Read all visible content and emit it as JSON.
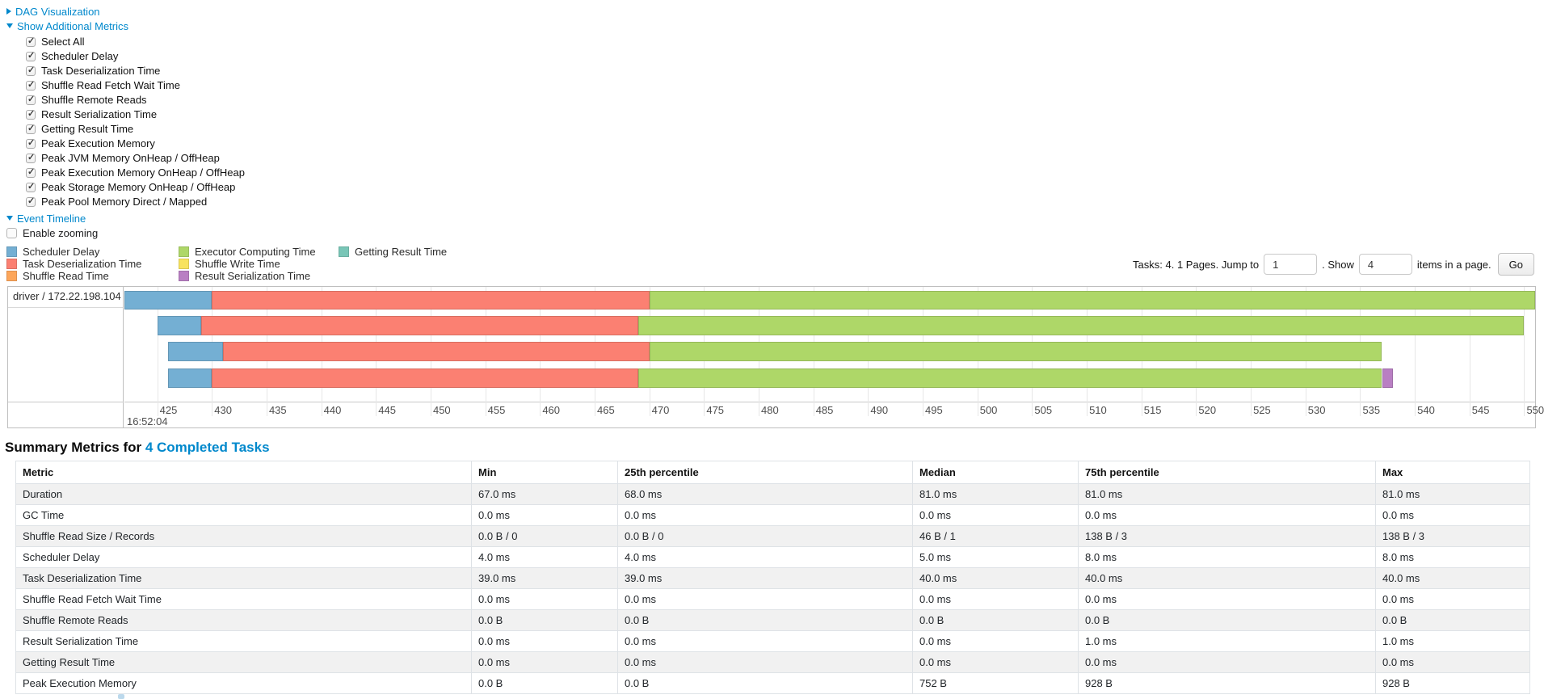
{
  "colors": {
    "link": "#0088cc"
  },
  "sections": {
    "dag": {
      "label": "DAG Visualization"
    },
    "metrics": {
      "label": "Show Additional Metrics"
    },
    "event_timeline": {
      "label": "Event Timeline"
    },
    "enable_zooming_label": "Enable zooming"
  },
  "metric_checkboxes": [
    "Select All",
    "Scheduler Delay",
    "Task Deserialization Time",
    "Shuffle Read Fetch Wait Time",
    "Shuffle Remote Reads",
    "Result Serialization Time",
    "Getting Result Time",
    "Peak Execution Memory",
    "Peak JVM Memory OnHeap / OffHeap",
    "Peak Execution Memory OnHeap / OffHeap",
    "Peak Storage Memory OnHeap / OffHeap",
    "Peak Pool Memory Direct / Mapped"
  ],
  "legend": {
    "columns": [
      {
        "items": [
          {
            "key": "scheduler_delay",
            "label": "Scheduler Delay"
          },
          {
            "key": "task_deserialization",
            "label": "Task Deserialization Time"
          },
          {
            "key": "shuffle_read",
            "label": "Shuffle Read Time"
          }
        ]
      },
      {
        "items": [
          {
            "key": "executor_computing",
            "label": "Executor Computing Time"
          },
          {
            "key": "shuffle_write",
            "label": "Shuffle Write Time"
          },
          {
            "key": "result_serialization",
            "label": "Result Serialization Time"
          }
        ]
      },
      {
        "items": [
          {
            "key": "getting_result",
            "label": "Getting Result Time"
          }
        ]
      }
    ]
  },
  "pagination": {
    "tasks_text": "Tasks: 4. 1 Pages. Jump to",
    "jump_value": "1",
    "show_text": ". Show",
    "show_value": "4",
    "items_text": "items in a page.",
    "go_label": "Go"
  },
  "chart_data": {
    "type": "timeline",
    "group_label": "driver / 172.22.198.104",
    "window": [
      422,
      551
    ],
    "ticks": [
      425,
      430,
      435,
      440,
      445,
      450,
      455,
      460,
      465,
      470,
      475,
      480,
      485,
      490,
      495,
      500,
      505,
      510,
      515,
      520,
      525,
      530,
      535,
      540,
      545,
      550
    ],
    "major_tick_label": "16:52:04",
    "colors": {
      "scheduler_delay": "#74AFD3",
      "task_deserialization": "#FB8072",
      "shuffle_read": "#FDA65A",
      "executor_computing": "#AED768",
      "shuffle_write": "#F8E35F",
      "result_serialization": "#B97FC3",
      "getting_result": "#79C6B7"
    },
    "tasks": [
      {
        "segments": [
          [
            "scheduler_delay",
            422,
            430
          ],
          [
            "task_deserialization",
            430,
            470
          ],
          [
            "executor_computing",
            470,
            551
          ]
        ]
      },
      {
        "segments": [
          [
            "scheduler_delay",
            425,
            429
          ],
          [
            "task_deserialization",
            429,
            469
          ],
          [
            "executor_computing",
            469,
            550
          ]
        ]
      },
      {
        "segments": [
          [
            "scheduler_delay",
            426,
            431
          ],
          [
            "task_deserialization",
            431,
            470
          ],
          [
            "executor_computing",
            470,
            537
          ]
        ]
      },
      {
        "segments": [
          [
            "scheduler_delay",
            426,
            430
          ],
          [
            "task_deserialization",
            430,
            469
          ],
          [
            "executor_computing",
            469,
            537
          ],
          [
            "result_serialization",
            537,
            538
          ]
        ]
      }
    ]
  },
  "summary": {
    "title_prefix": "Summary Metrics for ",
    "title_link": "4 Completed Tasks",
    "headers": [
      "Metric",
      "Min",
      "25th percentile",
      "Median",
      "75th percentile",
      "Max"
    ],
    "rows": [
      [
        "Duration",
        "67.0 ms",
        "68.0 ms",
        "81.0 ms",
        "81.0 ms",
        "81.0 ms"
      ],
      [
        "GC Time",
        "0.0 ms",
        "0.0 ms",
        "0.0 ms",
        "0.0 ms",
        "0.0 ms"
      ],
      [
        "Shuffle Read Size / Records",
        "0.0 B / 0",
        "0.0 B / 0",
        "46 B / 1",
        "138 B / 3",
        "138 B / 3"
      ],
      [
        "Scheduler Delay",
        "4.0 ms",
        "4.0 ms",
        "5.0 ms",
        "8.0 ms",
        "8.0 ms"
      ],
      [
        "Task Deserialization Time",
        "39.0 ms",
        "39.0 ms",
        "40.0 ms",
        "40.0 ms",
        "40.0 ms"
      ],
      [
        "Shuffle Read Fetch Wait Time",
        "0.0 ms",
        "0.0 ms",
        "0.0 ms",
        "0.0 ms",
        "0.0 ms"
      ],
      [
        "Shuffle Remote Reads",
        "0.0 B",
        "0.0 B",
        "0.0 B",
        "0.0 B",
        "0.0 B"
      ],
      [
        "Result Serialization Time",
        "0.0 ms",
        "0.0 ms",
        "0.0 ms",
        "1.0 ms",
        "1.0 ms"
      ],
      [
        "Getting Result Time",
        "0.0 ms",
        "0.0 ms",
        "0.0 ms",
        "0.0 ms",
        "0.0 ms"
      ],
      [
        "Peak Execution Memory",
        "0.0 B",
        "0.0 B",
        "752 B",
        "928 B",
        "928 B"
      ]
    ]
  }
}
